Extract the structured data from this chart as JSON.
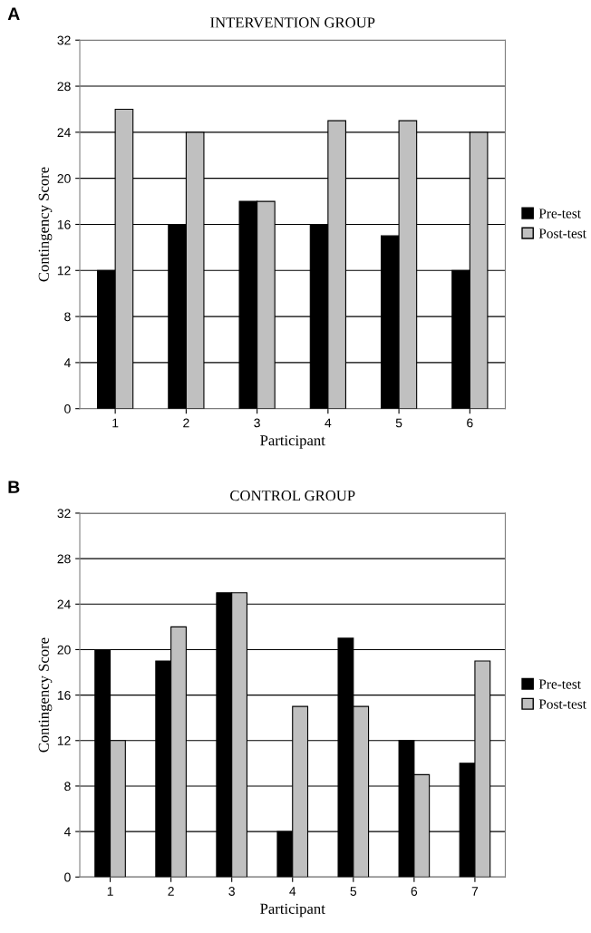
{
  "chart_data": [
    {
      "type": "bar",
      "title": "INTERVENTION GROUP",
      "xlabel": "Participant",
      "ylabel": "Contingency Score",
      "annotations": [
        "A"
      ],
      "categories": [
        "1",
        "2",
        "3",
        "4",
        "5",
        "6"
      ],
      "series": [
        {
          "name": "Pre-test",
          "color": "#000000",
          "values": [
            12,
            16,
            18,
            16,
            15,
            12
          ]
        },
        {
          "name": "Post-test",
          "color": "#c0c0c0",
          "values": [
            26,
            24,
            18,
            25,
            25,
            24
          ]
        }
      ],
      "ylim": [
        0,
        32
      ],
      "yticks": [
        0,
        4,
        8,
        12,
        16,
        20,
        24,
        28,
        32
      ],
      "grid": "y",
      "legend": "right"
    },
    {
      "type": "bar",
      "title": "CONTROL GROUP",
      "xlabel": "Participant",
      "ylabel": "Contingency Score",
      "annotations": [
        "B"
      ],
      "categories": [
        "1",
        "2",
        "3",
        "4",
        "5",
        "6",
        "7"
      ],
      "series": [
        {
          "name": "Pre-test",
          "color": "#000000",
          "values": [
            20,
            19,
            25,
            4,
            21,
            12,
            10
          ]
        },
        {
          "name": "Post-test",
          "color": "#c0c0c0",
          "values": [
            12,
            22,
            25,
            15,
            15,
            9,
            19
          ]
        }
      ],
      "ylim": [
        0,
        32
      ],
      "yticks": [
        0,
        4,
        8,
        12,
        16,
        20,
        24,
        28,
        32
      ],
      "grid": "y",
      "legend": "right"
    }
  ]
}
